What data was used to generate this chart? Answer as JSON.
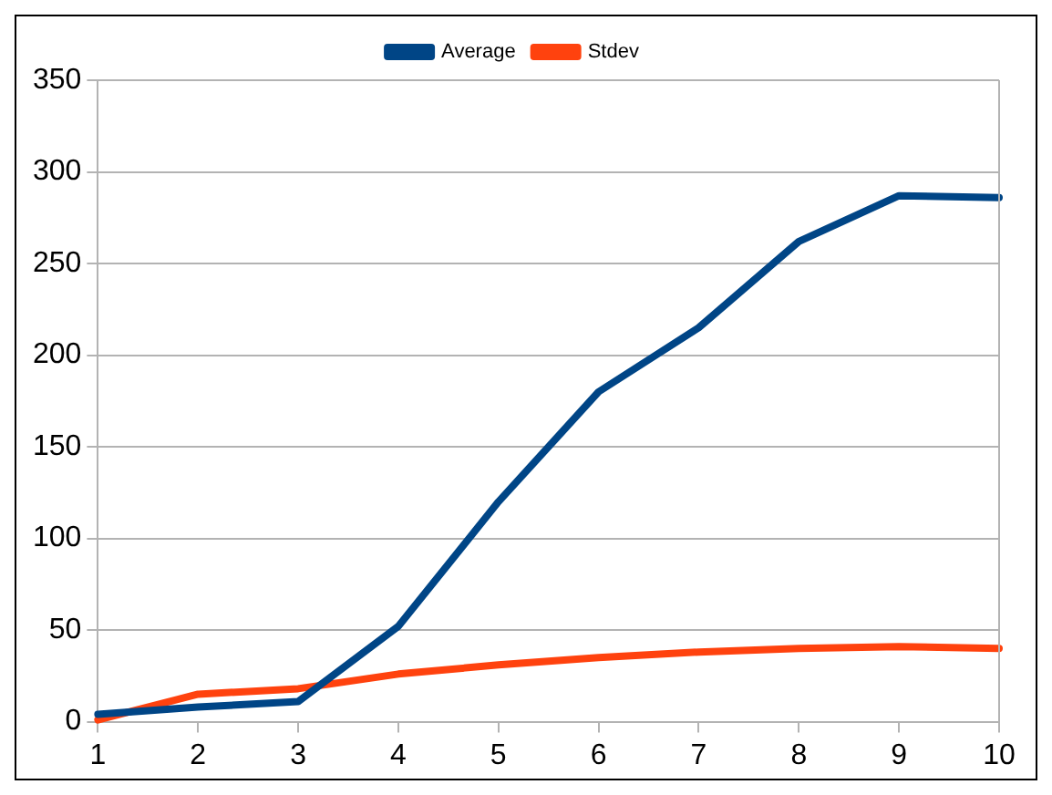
{
  "chart_data": {
    "type": "line",
    "x": [
      1,
      2,
      3,
      4,
      5,
      6,
      7,
      8,
      9,
      10
    ],
    "series": [
      {
        "name": "Average",
        "color": "#004586",
        "values": [
          4,
          8,
          11,
          52,
          120,
          180,
          215,
          262,
          287,
          286
        ]
      },
      {
        "name": "Stdev",
        "color": "#ff420e",
        "values": [
          1,
          15,
          18,
          26,
          31,
          35,
          38,
          40,
          41,
          40
        ]
      }
    ],
    "xlim": [
      1,
      10
    ],
    "xticks": [
      1,
      2,
      3,
      4,
      5,
      6,
      7,
      8,
      9,
      10
    ],
    "ylim": [
      0,
      350
    ],
    "yticks": [
      0,
      50,
      100,
      150,
      200,
      250,
      300,
      350
    ],
    "grid": "y",
    "legend": "top",
    "marker": "none",
    "line_style": "solid"
  }
}
